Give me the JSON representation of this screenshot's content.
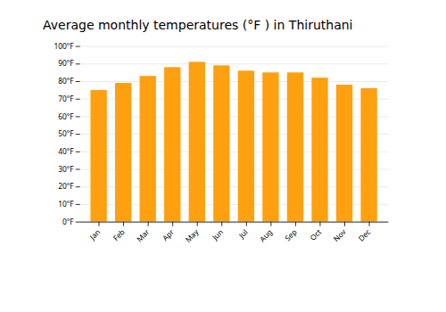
{
  "chart_data": {
    "type": "bar",
    "title": "Average monthly temperatures (°F ) in Thiruthani",
    "categories": [
      "Jan",
      "Feb",
      "Mar",
      "Apr",
      "May",
      "Jun",
      "Jul",
      "Aug",
      "Sep",
      "Oct",
      "Nov",
      "Dec"
    ],
    "values": [
      75,
      79,
      83,
      88,
      91,
      89,
      86,
      85,
      85,
      82,
      78,
      76
    ],
    "color": "#ffa010",
    "ylim": [
      0,
      100
    ],
    "yticks": [
      {
        "value": 0,
        "label": "0°F"
      },
      {
        "value": 10,
        "label": "10°F"
      },
      {
        "value": 20,
        "label": "20°F"
      },
      {
        "value": 30,
        "label": "30°F"
      },
      {
        "value": 40,
        "label": "40°F"
      },
      {
        "value": 50,
        "label": "50°F"
      },
      {
        "value": 60,
        "label": "60°F"
      },
      {
        "value": 70,
        "label": "70°F"
      },
      {
        "value": 80,
        "label": "80°F"
      },
      {
        "value": 90,
        "label": "90°F"
      },
      {
        "value": 100,
        "label": "100°F"
      }
    ],
    "grid": true
  }
}
